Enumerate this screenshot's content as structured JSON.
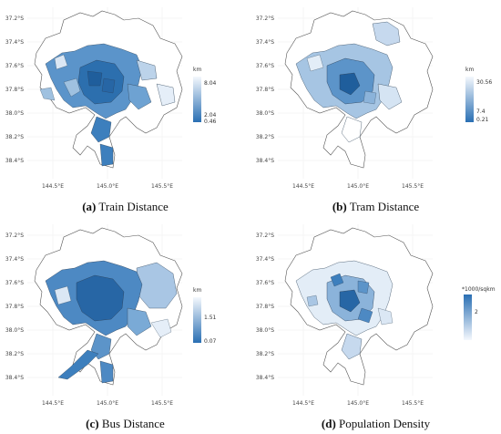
{
  "axes": {
    "y_ticks": [
      "37.2°S",
      "37.4°S",
      "37.6°S",
      "37.8°S",
      "38.0°S",
      "38.2°S",
      "38.4°S"
    ],
    "x_ticks": [
      "144.5°E",
      "145.0°E",
      "145.5°E"
    ]
  },
  "panels": [
    {
      "id": "a",
      "caption_letter": "(a)",
      "caption_text": " Train Distance",
      "legend_title": "km",
      "legend_labels": [
        "8.04",
        "2.04",
        "0.46"
      ],
      "gradient": [
        "#f4f8fd",
        "#2a6fb3"
      ]
    },
    {
      "id": "b",
      "caption_letter": "(b)",
      "caption_text": " Tram Distance",
      "legend_title": "km",
      "legend_labels": [
        "30.56",
        "7.4",
        "0.21"
      ],
      "gradient": [
        "#f4f8fd",
        "#2a6fb3"
      ]
    },
    {
      "id": "c",
      "caption_letter": "(c)",
      "caption_text": " Bus Distance",
      "legend_title": "km",
      "legend_labels": [
        "1.51",
        "0.07"
      ],
      "gradient": [
        "#f4f8fd",
        "#2a6fb3"
      ]
    },
    {
      "id": "d",
      "caption_letter": "(d)",
      "caption_text": " Population Density",
      "legend_title": "*1000/sqkm",
      "legend_labels": [
        "2"
      ],
      "gradient": [
        "#2a6fb3",
        "#f4f8fd"
      ]
    }
  ]
}
